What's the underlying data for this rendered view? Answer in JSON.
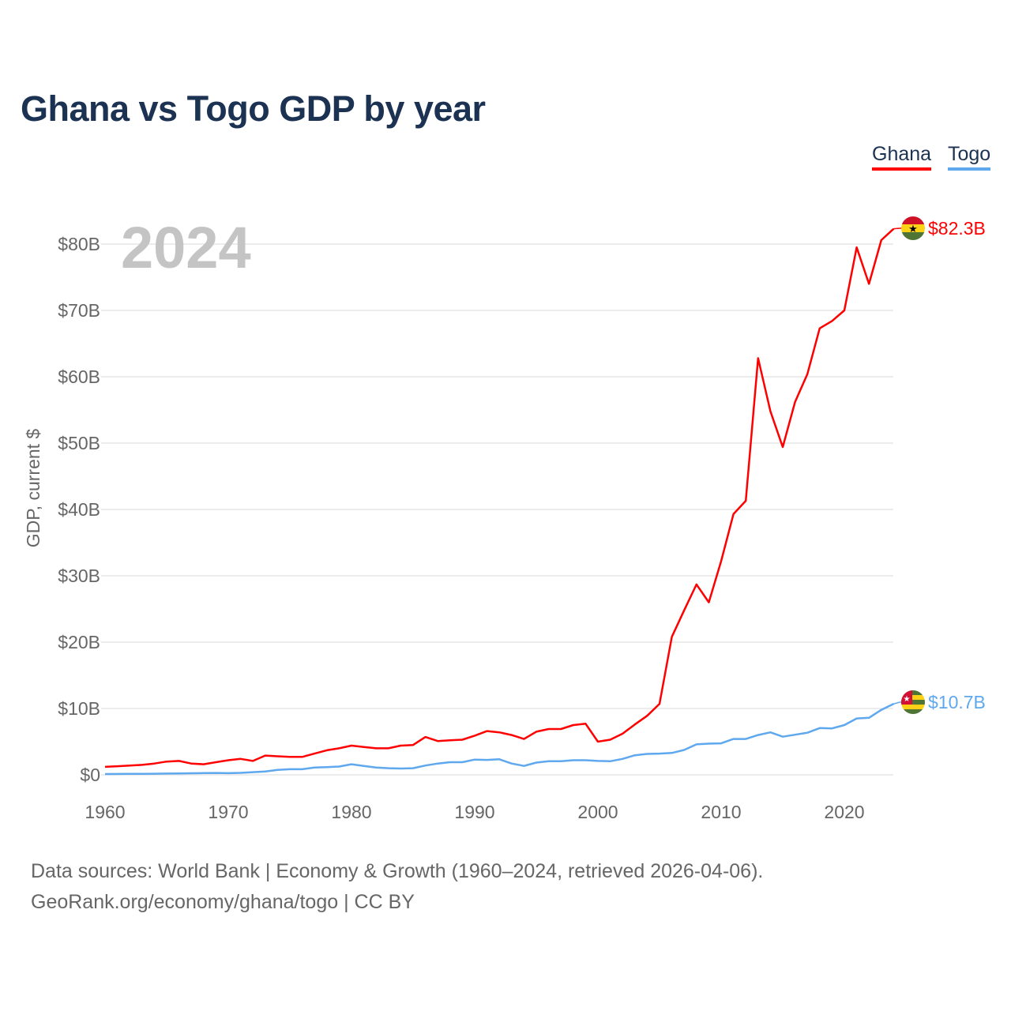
{
  "title": "Ghana vs Togo GDP by year",
  "legend": [
    {
      "label": "Ghana",
      "color": "#ff0000"
    },
    {
      "label": "Togo",
      "color": "#5fa8ee"
    }
  ],
  "year_watermark": "2024",
  "source_line1": "Data sources: World Bank | Economy & Growth (1960–2024, retrieved 2026-04-06).",
  "source_line2": "GeoRank.org/economy/ghana/togo | CC BY",
  "chart_data": {
    "type": "line",
    "title": "Ghana vs Togo GDP by year",
    "xlabel": "",
    "ylabel": "GDP, current $",
    "xlim": [
      1960,
      2024
    ],
    "ylim": [
      0,
      80
    ],
    "y_unit": "billion USD",
    "grid": true,
    "legend_position": "top-right",
    "x_ticks": [
      1960,
      1970,
      1980,
      1990,
      2000,
      2010,
      2020
    ],
    "x_tick_labels": [
      "1960",
      "1970",
      "1980",
      "1990",
      "2000",
      "2010",
      "2020"
    ],
    "y_ticks": [
      0,
      10,
      20,
      30,
      40,
      50,
      60,
      70,
      80
    ],
    "y_tick_labels": [
      "$0",
      "$10B",
      "$20B",
      "$30B",
      "$40B",
      "$50B",
      "$60B",
      "$70B",
      "$80B"
    ],
    "x_start": 1960,
    "series": [
      {
        "name": "Ghana",
        "color": "#ff0000",
        "end_label": "$82.3B",
        "values": [
          1.2,
          1.3,
          1.4,
          1.5,
          1.7,
          2.0,
          2.1,
          1.7,
          1.6,
          1.9,
          2.2,
          2.4,
          2.1,
          2.9,
          2.8,
          2.7,
          2.7,
          3.2,
          3.7,
          4.0,
          4.4,
          4.2,
          4.0,
          4.0,
          4.4,
          4.5,
          5.7,
          5.1,
          5.2,
          5.3,
          5.9,
          6.6,
          6.4,
          6.0,
          5.4,
          6.5,
          6.9,
          6.9,
          7.5,
          7.7,
          5.0,
          5.3,
          6.2,
          7.6,
          8.9,
          10.7,
          20.8,
          24.8,
          28.7,
          26.0,
          32.2,
          39.3,
          41.3,
          62.8,
          54.8,
          49.4,
          56.2,
          60.4,
          67.3,
          68.4,
          70.0,
          79.5,
          74.0,
          80.6,
          82.3
        ]
      },
      {
        "name": "Togo",
        "color": "#5fa8ee",
        "end_label": "$10.7B",
        "values": [
          0.12,
          0.13,
          0.14,
          0.15,
          0.17,
          0.19,
          0.22,
          0.24,
          0.26,
          0.29,
          0.25,
          0.3,
          0.4,
          0.5,
          0.75,
          0.85,
          0.85,
          1.1,
          1.15,
          1.25,
          1.6,
          1.35,
          1.1,
          1.0,
          0.95,
          1.0,
          1.4,
          1.7,
          1.9,
          1.9,
          2.3,
          2.25,
          2.35,
          1.7,
          1.35,
          1.85,
          2.05,
          2.05,
          2.2,
          2.2,
          2.1,
          2.05,
          2.4,
          2.95,
          3.15,
          3.2,
          3.3,
          3.75,
          4.6,
          4.7,
          4.75,
          5.4,
          5.4,
          6.0,
          6.4,
          5.75,
          6.05,
          6.35,
          7.05,
          7.0,
          7.5,
          8.5,
          8.6,
          9.8,
          10.7
        ]
      }
    ]
  }
}
